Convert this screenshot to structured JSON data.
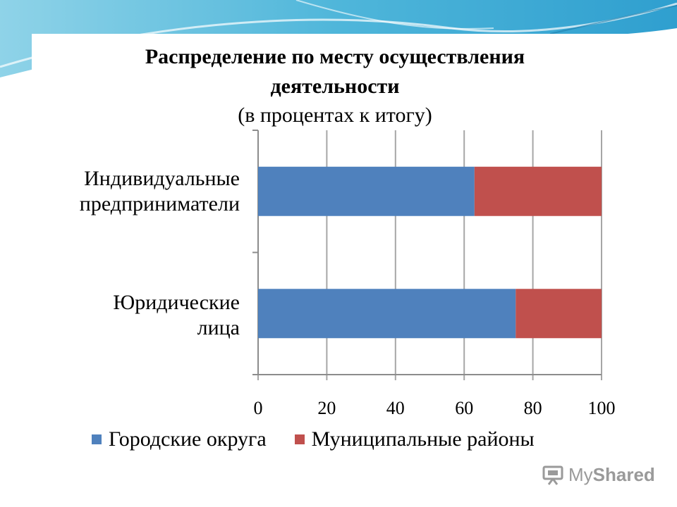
{
  "chart_data": {
    "type": "bar",
    "orientation": "horizontal",
    "stacked": true,
    "title": "Распределение по месту осуществления деятельности",
    "title_line1": "Распределение по месту осуществления",
    "title_line2": "деятельности",
    "subtitle": "(в процентах к итогу)",
    "categories": [
      "Индивидуальные\nпредприниматели",
      "Юридические\nлица"
    ],
    "series": [
      {
        "name": "Городские округа",
        "color": "#4F81BD",
        "values": [
          63,
          75
        ]
      },
      {
        "name": "Муниципальные районы",
        "color": "#C0504D",
        "values": [
          37,
          25
        ]
      }
    ],
    "xlim": [
      0,
      100
    ],
    "xticks": [
      "0",
      "20",
      "40",
      "60",
      "80",
      "100"
    ],
    "grid": true,
    "legend": "bottom"
  },
  "logo": {
    "text_a": "My",
    "text_b": "Shared",
    "icon": "projector-icon"
  }
}
